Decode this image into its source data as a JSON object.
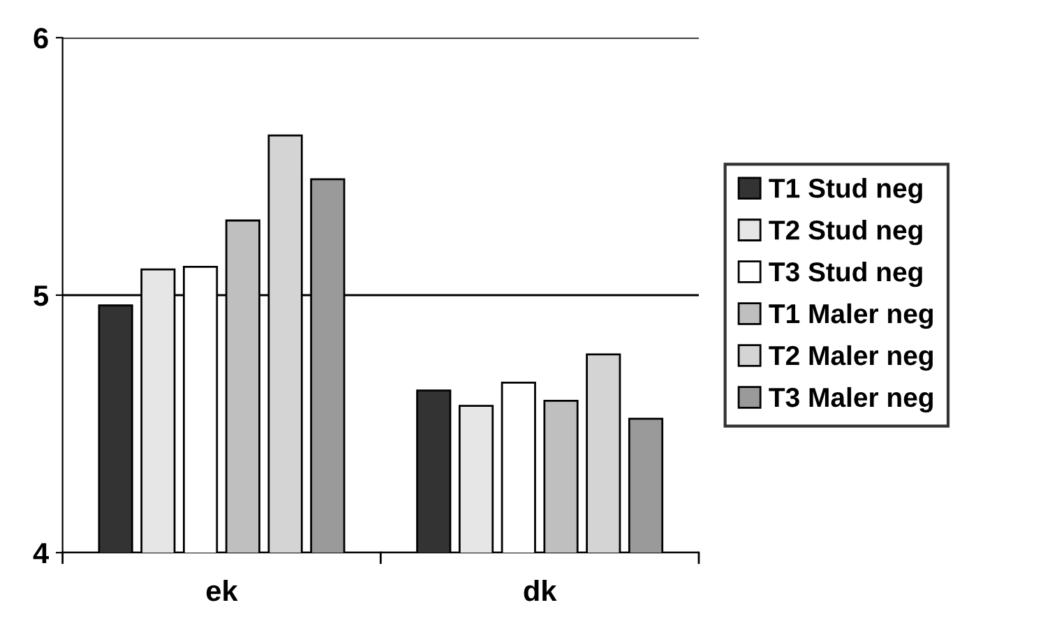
{
  "chart_data": {
    "type": "bar",
    "categories": [
      "ek",
      "dk"
    ],
    "series": [
      {
        "name": "T1 Stud neg",
        "color": "#333333",
        "values": [
          4.96,
          4.63
        ]
      },
      {
        "name": "T2 Stud neg",
        "color": "#e6e6e6",
        "values": [
          5.1,
          4.57
        ]
      },
      {
        "name": "T3 Stud neg",
        "color": "#ffffff",
        "values": [
          5.11,
          4.66
        ]
      },
      {
        "name": "T1 Maler neg",
        "color": "#bfbfbf",
        "values": [
          5.29,
          4.59
        ]
      },
      {
        "name": "T2 Maler neg",
        "color": "#d4d4d4",
        "values": [
          5.62,
          4.77
        ]
      },
      {
        "name": "T3 Maler neg",
        "color": "#9a9a9a",
        "values": [
          5.45,
          4.52
        ]
      }
    ],
    "ylim": [
      4,
      6
    ],
    "yticks": [
      4,
      5,
      6
    ],
    "grid": "y",
    "legend": "right"
  }
}
